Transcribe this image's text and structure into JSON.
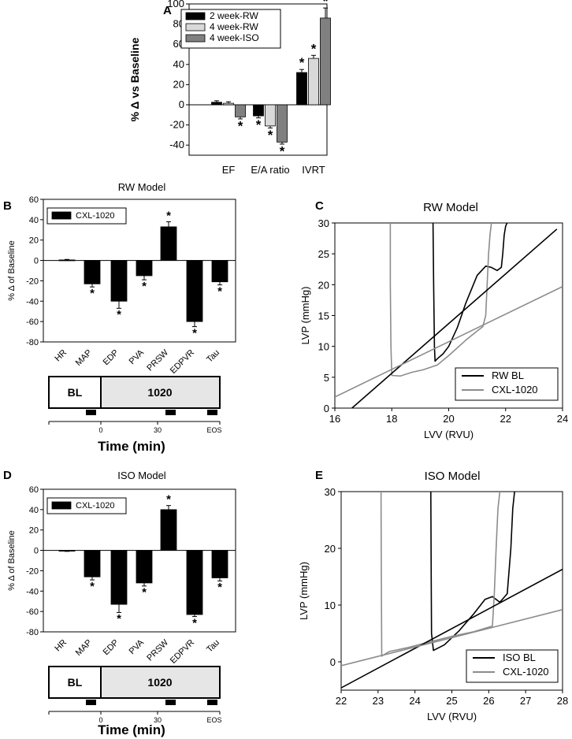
{
  "figure": {
    "panel_labels": {
      "A": "A",
      "B": "B",
      "C": "C",
      "D": "D",
      "E": "E"
    }
  },
  "chart_data": [
    {
      "id": "A",
      "type": "bar",
      "title": "",
      "ylabel": "% Δ vs Baseline",
      "xlabel": "",
      "ylim": [
        -50,
        100
      ],
      "yticks": [
        -40,
        -20,
        0,
        20,
        40,
        60,
        80,
        100
      ],
      "categories": [
        "EF",
        "E/A ratio",
        "IVRT"
      ],
      "series": [
        {
          "name": "2 week-RW",
          "color": "#000000",
          "values": [
            2.5,
            -11,
            32
          ],
          "errors": [
            1.5,
            2,
            3
          ],
          "sig": [
            "",
            "*",
            "*"
          ]
        },
        {
          "name": "4 week-RW",
          "color": "#d9d9d9",
          "values": [
            1.5,
            -21,
            46
          ],
          "errors": [
            1.5,
            2,
            3
          ],
          "sig": [
            "",
            "*",
            "*"
          ]
        },
        {
          "name": "4 week-ISO",
          "color": "#808080",
          "values": [
            -12,
            -37,
            86
          ],
          "errors": [
            2,
            2,
            10
          ],
          "sig": [
            "*",
            "*",
            "*"
          ]
        }
      ],
      "legend_position": "top-left"
    },
    {
      "id": "B",
      "type": "bar",
      "title": "RW Model",
      "ylabel": "% Δ of Baseline",
      "ylim": [
        -80,
        60
      ],
      "yticks": [
        -80,
        -60,
        -40,
        -20,
        0,
        20,
        40,
        60
      ],
      "categories": [
        "HR",
        "MAP",
        "EDP",
        "PVA",
        "PRSW",
        "EDPVR",
        "Tau"
      ],
      "series": [
        {
          "name": "CXL-1020",
          "color": "#000000",
          "values": [
            0.5,
            -23,
            -40,
            -15,
            33,
            -60,
            -21
          ],
          "errors": [
            0.5,
            3,
            7,
            4,
            5,
            5,
            3
          ],
          "sig": [
            "",
            "*",
            "*",
            "*",
            "*",
            "*",
            "*"
          ]
        }
      ],
      "legend_position": "top-left"
    },
    {
      "id": "D",
      "type": "bar",
      "title": "ISO Model",
      "ylabel": "% Δ of Baseline",
      "ylim": [
        -80,
        60
      ],
      "yticks": [
        -80,
        -60,
        -40,
        -20,
        0,
        20,
        40,
        60
      ],
      "categories": [
        "HR",
        "MAP",
        "EDP",
        "PVA",
        "PRSW",
        "EDPVR",
        "Tau"
      ],
      "series": [
        {
          "name": "CXL-1020",
          "color": "#000000",
          "values": [
            -0.5,
            -26,
            -53,
            -32,
            40,
            -63,
            -27
          ],
          "errors": [
            0.5,
            3,
            8,
            3,
            4,
            2,
            3
          ],
          "sig": [
            "",
            "*",
            "*",
            "*",
            "*",
            "*",
            "*"
          ]
        }
      ],
      "legend_position": "top-left"
    },
    {
      "id": "C",
      "type": "line",
      "title": "RW Model",
      "xlabel": "LVV (RVU)",
      "ylabel": "LVP (mmHg)",
      "xlim": [
        16,
        24
      ],
      "ylim": [
        0,
        30
      ],
      "xticks": [
        16,
        18,
        20,
        22,
        24
      ],
      "yticks": [
        0,
        5,
        10,
        15,
        20,
        25,
        30
      ],
      "legend_position": "bottom-right",
      "series": [
        {
          "name": "RW BL",
          "color": "#000000",
          "x": [
            19.45,
            19.47,
            19.5,
            19.52,
            19.6,
            19.8,
            20.0,
            20.3,
            20.6,
            21.0,
            21.3,
            21.5,
            21.7,
            21.85,
            21.9,
            21.95,
            22.0,
            22.05
          ],
          "y": [
            30,
            20,
            10,
            7.6,
            8.0,
            8.8,
            10.0,
            13.0,
            17.0,
            21.5,
            23.0,
            22.8,
            22.3,
            22.8,
            25,
            28,
            29.5,
            30
          ]
        },
        {
          "name": "CXL-1020",
          "color": "#8c8c8c",
          "x": [
            17.95,
            17.95,
            17.97,
            18.0,
            18.3,
            18.7,
            19.1,
            19.6,
            20.0,
            20.6,
            21.0,
            21.2,
            21.3,
            21.35,
            21.4,
            21.45,
            21.5
          ],
          "y": [
            30,
            20,
            10,
            5.3,
            5.2,
            5.8,
            6.2,
            7.0,
            8.5,
            11.0,
            12.5,
            13.2,
            15.0,
            20.0,
            25.0,
            28.0,
            30
          ]
        },
        {
          "name": "RW BL EDPVR",
          "color": "#000000",
          "x": [
            16.6,
            23.8
          ],
          "y": [
            0,
            29
          ]
        },
        {
          "name": "CXL-1020 EDPVR",
          "color": "#8c8c8c",
          "x": [
            16,
            24
          ],
          "y": [
            1.8,
            19.7
          ]
        }
      ]
    },
    {
      "id": "E",
      "type": "line",
      "title": "ISO Model",
      "xlabel": "LVV (RVU)",
      "ylabel": "LVP (mmHg)",
      "xlim": [
        22,
        28
      ],
      "ylim": [
        -5,
        30
      ],
      "xticks": [
        22,
        23,
        24,
        25,
        26,
        27,
        28
      ],
      "yticks": [
        0,
        10,
        20,
        30
      ],
      "legend_position": "bottom-right",
      "series": [
        {
          "name": "ISO BL",
          "color": "#000000",
          "x": [
            24.43,
            24.44,
            24.45,
            24.5,
            24.8,
            25.2,
            25.6,
            25.9,
            26.1,
            26.3,
            26.5,
            26.6,
            26.65,
            26.7
          ],
          "y": [
            30,
            15,
            5,
            2.0,
            3.0,
            5.5,
            8.5,
            11.0,
            11.5,
            10.5,
            12.0,
            20.0,
            27.0,
            30
          ]
        },
        {
          "name": "CXL-1020",
          "color": "#8c8c8c",
          "x": [
            23.08,
            23.09,
            23.1,
            23.3,
            23.8,
            24.4,
            25.0,
            25.6,
            26.1,
            26.15,
            26.2,
            26.25,
            26.3
          ],
          "y": [
            30,
            15,
            1.0,
            1.8,
            2.5,
            3.5,
            4.5,
            5.3,
            6.3,
            12.0,
            20.0,
            27.0,
            30
          ]
        },
        {
          "name": "ISO BL EDPVR",
          "color": "#000000",
          "x": [
            22,
            28
          ],
          "y": [
            -4.6,
            16.3
          ]
        },
        {
          "name": "CXL-1020 EDPVR",
          "color": "#8c8c8c",
          "x": [
            22,
            28
          ],
          "y": [
            -0.7,
            9.2
          ]
        }
      ]
    }
  ],
  "timelines": [
    {
      "id": "B-timeline",
      "bl_label": "BL",
      "drug_label": "1020",
      "tick_labels": [
        "0",
        "30",
        "EOS"
      ],
      "xlabel": "Time (min)"
    },
    {
      "id": "D-timeline",
      "bl_label": "BL",
      "drug_label": "1020",
      "tick_labels": [
        "0",
        "30",
        "EOS"
      ],
      "xlabel": "Time (min)"
    }
  ]
}
